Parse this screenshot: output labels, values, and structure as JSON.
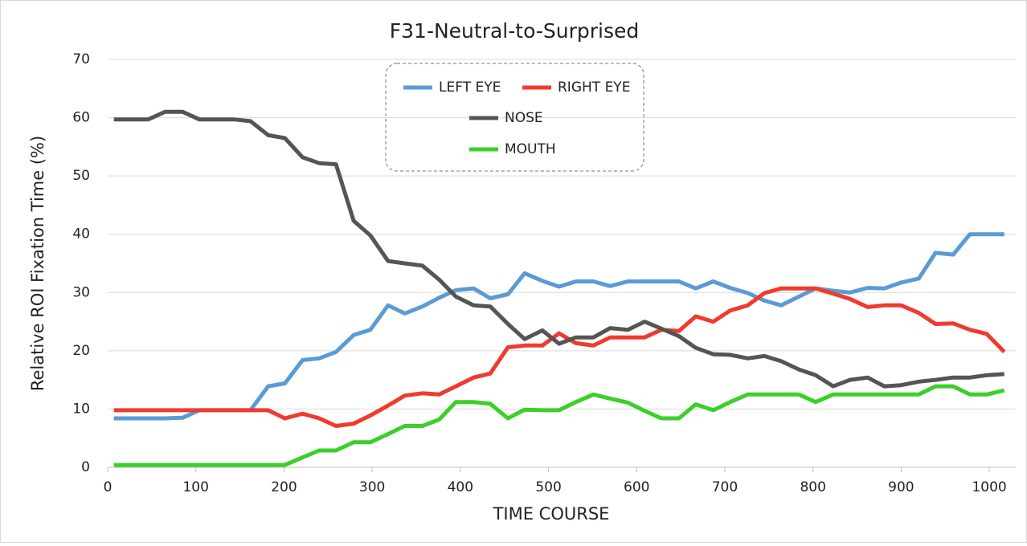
{
  "chart_data": {
    "type": "line",
    "title": "F31-Neutral-to-Surprised",
    "x_label": "TIME  COURSE",
    "y_label": "Relative  ROI  Fixation  Time  (%)",
    "x": [
      7,
      26,
      46,
      65,
      85,
      104,
      124,
      143,
      162,
      182,
      201,
      221,
      240,
      259,
      279,
      298,
      318,
      337,
      357,
      376,
      395,
      415,
      434,
      454,
      473,
      493,
      512,
      531,
      551,
      570,
      590,
      609,
      628,
      648,
      667,
      687,
      706,
      726,
      745,
      764,
      784,
      803,
      823,
      842,
      862,
      881,
      900,
      920,
      939,
      959,
      978,
      997,
      1017
    ],
    "series": [
      {
        "name": "LEFT EYE",
        "color": "#5b9bd5",
        "values": [
          8.4,
          8.4,
          8.4,
          8.4,
          8.5,
          9.8,
          9.8,
          9.8,
          9.8,
          13.9,
          14.4,
          18.4,
          18.7,
          19.8,
          22.7,
          23.6,
          27.8,
          26.4,
          27.6,
          29.1,
          30.4,
          30.7,
          29,
          29.7,
          33.3,
          32,
          31,
          31.9,
          31.9,
          31.1,
          31.9,
          31.9,
          31.9,
          31.9,
          30.7,
          31.9,
          30.8,
          29.9,
          28.6,
          27.8,
          29.3,
          30.7,
          30.3,
          30,
          30.8,
          30.7,
          31.7,
          32.4,
          36.8,
          36.5,
          40,
          40,
          40
        ]
      },
      {
        "name": "RIGHT EYE",
        "color": "#f03a2e",
        "values": [
          9.8,
          9.8,
          9.8,
          9.8,
          9.8,
          9.8,
          9.8,
          9.8,
          9.8,
          9.8,
          8.4,
          9.2,
          8.4,
          7.1,
          7.5,
          8.9,
          10.6,
          12.3,
          12.7,
          12.5,
          13.9,
          15.4,
          16.1,
          20.6,
          20.9,
          20.9,
          23,
          21.3,
          20.9,
          22.3,
          22.3,
          22.3,
          23.6,
          23.4,
          25.9,
          25,
          26.9,
          27.8,
          29.9,
          30.7,
          30.7,
          30.7,
          29.8,
          28.9,
          27.5,
          27.8,
          27.8,
          26.5,
          24.6,
          24.7,
          23.6,
          22.9,
          19.8
        ]
      },
      {
        "name": "NOSE",
        "color": "#555555",
        "values": [
          59.7,
          59.7,
          59.7,
          61,
          61,
          59.7,
          59.7,
          59.7,
          59.4,
          57,
          56.5,
          53.2,
          52.2,
          52,
          42.3,
          39.8,
          35.4,
          35,
          34.6,
          32.2,
          29.3,
          27.8,
          27.6,
          24.6,
          22,
          23.5,
          21.2,
          22.3,
          22.3,
          23.9,
          23.6,
          25,
          23.8,
          22.5,
          20.5,
          19.4,
          19.3,
          18.7,
          19.1,
          18.2,
          16.8,
          15.8,
          13.9,
          15,
          15.4,
          13.9,
          14.1,
          14.7,
          15,
          15.4,
          15.4,
          15.8,
          16
        ]
      },
      {
        "name": "MOUTH",
        "color": "#3ccf2a",
        "values": [
          0.4,
          0.4,
          0.4,
          0.4,
          0.4,
          0.4,
          0.4,
          0.4,
          0.4,
          0.4,
          0.4,
          1.7,
          2.9,
          2.9,
          4.3,
          4.3,
          5.7,
          7.1,
          7.1,
          8.2,
          11.2,
          11.2,
          10.9,
          8.4,
          9.9,
          9.8,
          9.8,
          11.2,
          12.5,
          11.8,
          11.1,
          9.7,
          8.4,
          8.4,
          10.8,
          9.8,
          11.2,
          12.5,
          12.5,
          12.5,
          12.5,
          11.2,
          12.5,
          12.5,
          12.5,
          12.5,
          12.5,
          12.5,
          13.9,
          13.9,
          12.5,
          12.5,
          13.2
        ]
      }
    ],
    "xlim": [
      0,
      1030
    ],
    "ylim": [
      0,
      70
    ],
    "xticks": [
      0,
      100,
      200,
      300,
      400,
      500,
      600,
      700,
      800,
      900,
      1000
    ],
    "yticks": [
      0,
      10,
      20,
      30,
      40,
      50,
      60,
      70
    ],
    "grid": true,
    "legend": "top"
  }
}
